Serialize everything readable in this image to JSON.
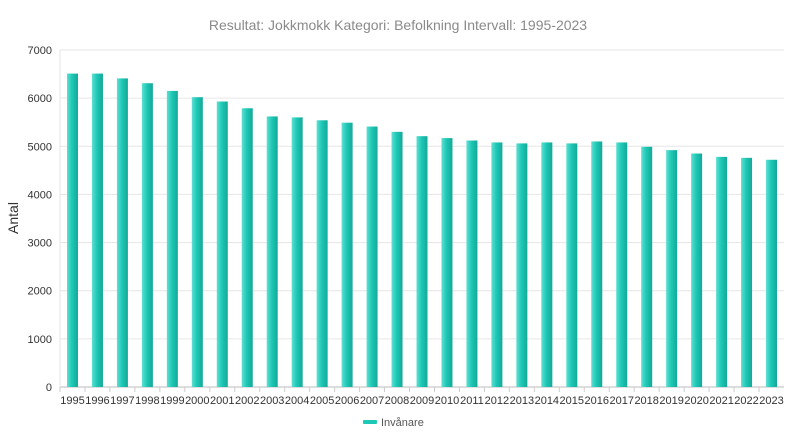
{
  "chart_data": {
    "type": "bar",
    "title": "Resultat: Jokkmokk Kategori: Befolkning Intervall: 1995-2023",
    "xlabel": "",
    "ylabel": "Antal",
    "ylim": [
      0,
      7000
    ],
    "yticks": [
      0,
      1000,
      2000,
      3000,
      4000,
      5000,
      6000,
      7000
    ],
    "grid": true,
    "legend_position": "bottom",
    "bar_color": "#1ec8b6",
    "categories": [
      "1995",
      "1996",
      "1997",
      "1998",
      "1999",
      "2000",
      "2001",
      "2002",
      "2003",
      "2004",
      "2005",
      "2006",
      "2007",
      "2008",
      "2009",
      "2010",
      "2011",
      "2012",
      "2013",
      "2014",
      "2015",
      "2016",
      "2017",
      "2018",
      "2019",
      "2020",
      "2021",
      "2022",
      "2023"
    ],
    "series": [
      {
        "name": "Invånare",
        "values": [
          6510,
          6510,
          6410,
          6310,
          6150,
          6020,
          5930,
          5790,
          5620,
          5600,
          5540,
          5490,
          5410,
          5300,
          5210,
          5170,
          5120,
          5080,
          5060,
          5080,
          5060,
          5100,
          5080,
          4990,
          4920,
          4850,
          4780,
          4760,
          4720
        ]
      }
    ]
  }
}
